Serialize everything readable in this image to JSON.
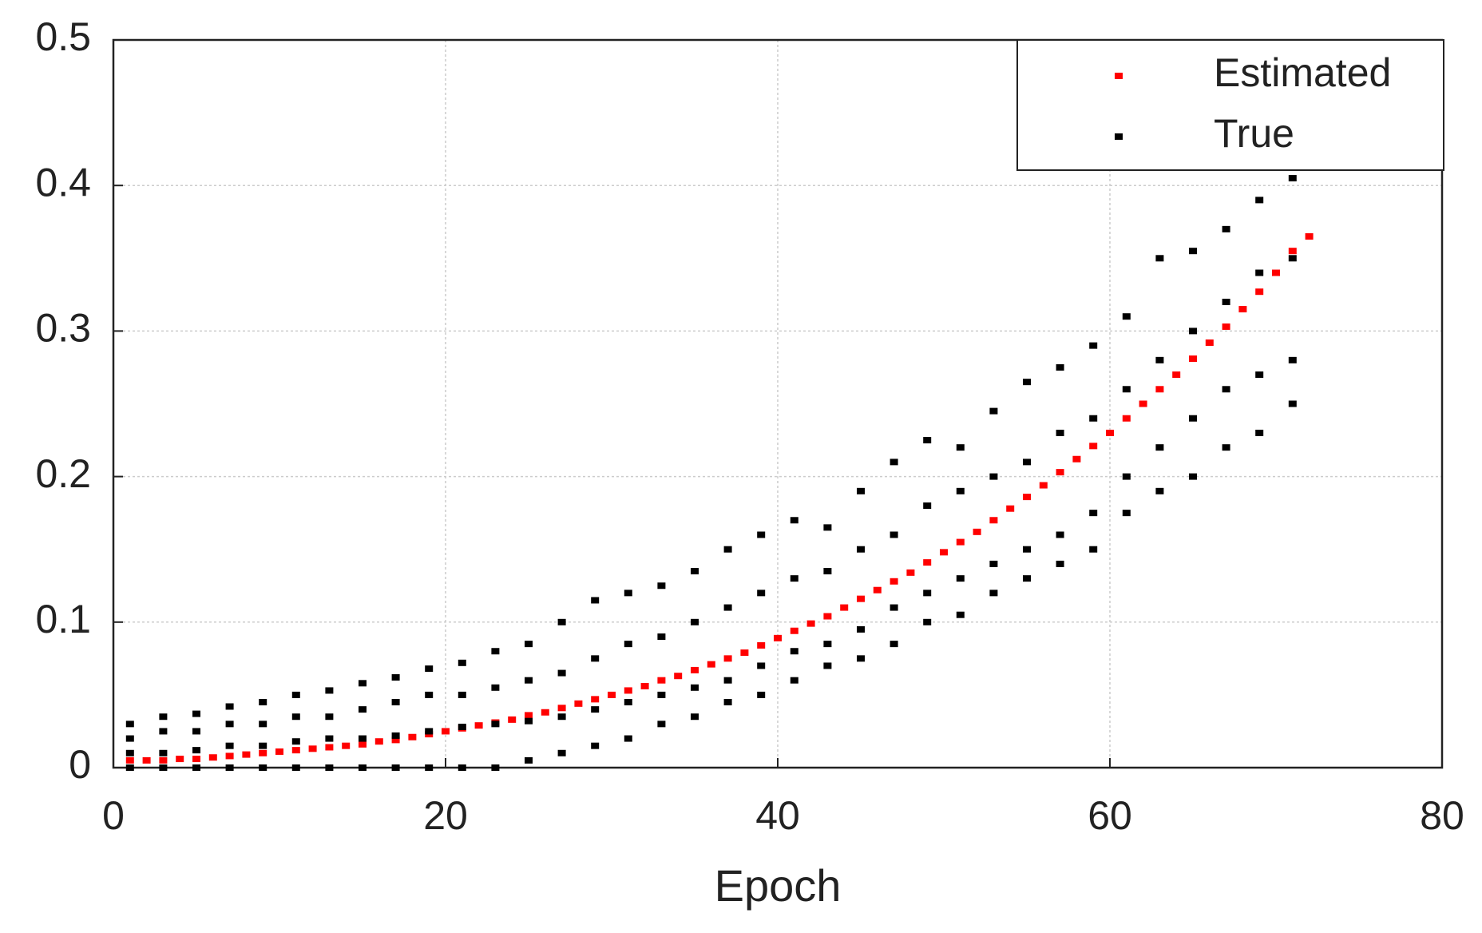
{
  "chart_data": {
    "type": "scatter",
    "xlabel": "Epoch",
    "xlim": [
      0,
      80
    ],
    "xticks": [
      0,
      20,
      40,
      60,
      80
    ],
    "ylim": [
      0,
      0.5
    ],
    "yticks": [
      0,
      0.1,
      0.2,
      0.3,
      0.4,
      0.5
    ],
    "grid": true,
    "legend": "upper right",
    "series": [
      {
        "name": "Estimated",
        "color": "#ff0000",
        "x": [
          1,
          2,
          3,
          4,
          5,
          6,
          7,
          8,
          9,
          10,
          11,
          12,
          13,
          14,
          15,
          16,
          17,
          18,
          19,
          20,
          21,
          22,
          23,
          24,
          25,
          26,
          27,
          28,
          29,
          30,
          31,
          32,
          33,
          34,
          35,
          36,
          37,
          38,
          39,
          40,
          41,
          42,
          43,
          44,
          45,
          46,
          47,
          48,
          49,
          50,
          51,
          52,
          53,
          54,
          55,
          56,
          57,
          58,
          59,
          60,
          61,
          62,
          63,
          64,
          65,
          66,
          67,
          68,
          69,
          70,
          71,
          72
        ],
        "values": [
          0.005,
          0.005,
          0.005,
          0.006,
          0.006,
          0.007,
          0.008,
          0.009,
          0.01,
          0.011,
          0.012,
          0.013,
          0.014,
          0.015,
          0.016,
          0.018,
          0.019,
          0.021,
          0.023,
          0.025,
          0.027,
          0.029,
          0.031,
          0.033,
          0.036,
          0.038,
          0.041,
          0.044,
          0.047,
          0.05,
          0.053,
          0.056,
          0.06,
          0.063,
          0.067,
          0.071,
          0.075,
          0.079,
          0.084,
          0.089,
          0.094,
          0.099,
          0.104,
          0.11,
          0.116,
          0.122,
          0.128,
          0.134,
          0.141,
          0.148,
          0.155,
          0.162,
          0.17,
          0.178,
          0.186,
          0.194,
          0.203,
          0.212,
          0.221,
          0.23,
          0.24,
          0.25,
          0.26,
          0.27,
          0.281,
          0.292,
          0.303,
          0.315,
          0.327,
          0.34,
          0.355,
          0.365
        ]
      },
      {
        "name": "True",
        "color": "#000000",
        "x": [
          1,
          1,
          1,
          1,
          3,
          3,
          3,
          3,
          5,
          5,
          5,
          5,
          7,
          7,
          7,
          7,
          9,
          9,
          9,
          9,
          11,
          11,
          11,
          11,
          13,
          13,
          13,
          13,
          15,
          15,
          15,
          15,
          17,
          17,
          17,
          17,
          19,
          19,
          19,
          19,
          21,
          21,
          21,
          21,
          23,
          23,
          23,
          23,
          25,
          25,
          25,
          25,
          27,
          27,
          27,
          27,
          29,
          29,
          29,
          29,
          31,
          31,
          31,
          31,
          33,
          33,
          33,
          33,
          35,
          35,
          35,
          35,
          37,
          37,
          37,
          37,
          39,
          39,
          39,
          39,
          41,
          41,
          41,
          41,
          43,
          43,
          43,
          43,
          45,
          45,
          45,
          45,
          47,
          47,
          47,
          47,
          49,
          49,
          49,
          49,
          51,
          51,
          51,
          51,
          53,
          53,
          53,
          53,
          55,
          55,
          55,
          55,
          57,
          57,
          57,
          57,
          59,
          59,
          59,
          59,
          61,
          61,
          61,
          61,
          63,
          63,
          63,
          63,
          65,
          65,
          65,
          65,
          67,
          67,
          67,
          67,
          69,
          69,
          69,
          69,
          71,
          71,
          71,
          71
        ],
        "values": [
          0,
          0.01,
          0.02,
          0.03,
          0,
          0.01,
          0.025,
          0.035,
          0,
          0.012,
          0.025,
          0.037,
          0,
          0.015,
          0.03,
          0.042,
          0,
          0.015,
          0.03,
          0.045,
          0,
          0.018,
          0.035,
          0.05,
          0,
          0.02,
          0.035,
          0.053,
          0,
          0.02,
          0.04,
          0.058,
          0,
          0.022,
          0.045,
          0.062,
          0,
          0.025,
          0.05,
          0.068,
          0,
          0.028,
          0.05,
          0.072,
          0,
          0.03,
          0.055,
          0.08,
          0.005,
          0.032,
          0.06,
          0.085,
          0.01,
          0.035,
          0.065,
          0.1,
          0.015,
          0.04,
          0.075,
          0.115,
          0.02,
          0.045,
          0.085,
          0.12,
          0.03,
          0.05,
          0.09,
          0.125,
          0.035,
          0.055,
          0.1,
          0.135,
          0.045,
          0.06,
          0.11,
          0.15,
          0.05,
          0.07,
          0.12,
          0.16,
          0.06,
          0.08,
          0.13,
          0.17,
          0.07,
          0.085,
          0.135,
          0.165,
          0.075,
          0.095,
          0.15,
          0.19,
          0.085,
          0.11,
          0.16,
          0.21,
          0.1,
          0.12,
          0.18,
          0.225,
          0.105,
          0.13,
          0.19,
          0.22,
          0.12,
          0.14,
          0.2,
          0.245,
          0.13,
          0.15,
          0.21,
          0.265,
          0.14,
          0.16,
          0.23,
          0.275,
          0.15,
          0.175,
          0.24,
          0.29,
          0.175,
          0.2,
          0.26,
          0.31,
          0.19,
          0.22,
          0.28,
          0.35,
          0.2,
          0.24,
          0.3,
          0.355,
          0.22,
          0.26,
          0.32,
          0.37,
          0.23,
          0.27,
          0.34,
          0.39,
          0.25,
          0.28,
          0.35,
          0.405
        ]
      }
    ]
  }
}
